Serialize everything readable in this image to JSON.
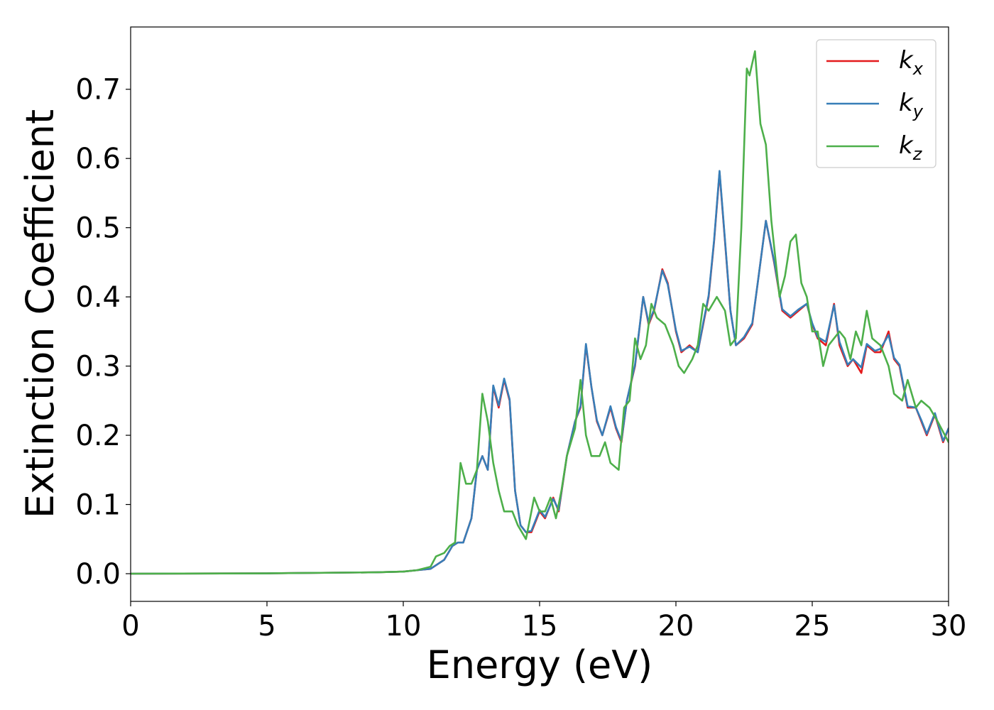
{
  "chart_data": {
    "type": "line",
    "title": "",
    "xlabel": "Energy (eV)",
    "ylabel": "Extinction Coefficient",
    "xlim": [
      0,
      30
    ],
    "ylim": [
      -0.04,
      0.79
    ],
    "xticks": [
      0,
      5,
      10,
      15,
      20,
      25,
      30
    ],
    "xtick_labels": [
      "0",
      "5",
      "10",
      "15",
      "20",
      "25",
      "30"
    ],
    "yticks": [
      0.0,
      0.1,
      0.2,
      0.3,
      0.4,
      0.5,
      0.6,
      0.7
    ],
    "ytick_labels": [
      "0.0",
      "0.1",
      "0.2",
      "0.3",
      "0.4",
      "0.5",
      "0.6",
      "0.7"
    ],
    "grid": false,
    "legend_position": "top-right",
    "series": [
      {
        "name": "kx",
        "label_main": "k",
        "label_sub": "x",
        "color": "#e41a1c",
        "x": [
          0,
          5,
          9,
          10,
          10.5,
          11,
          11.5,
          11.8,
          12,
          12.2,
          12.5,
          12.7,
          12.9,
          13.0,
          13.1,
          13.3,
          13.5,
          13.7,
          13.9,
          14.1,
          14.3,
          14.5,
          14.7,
          15.0,
          15.2,
          15.5,
          15.7,
          16.0,
          16.3,
          16.5,
          16.7,
          16.9,
          17.1,
          17.3,
          17.6,
          17.8,
          18.0,
          18.2,
          18.5,
          18.8,
          19.0,
          19.2,
          19.5,
          19.7,
          20.0,
          20.2,
          20.5,
          20.8,
          21.0,
          21.2,
          21.4,
          21.6,
          21.8,
          22.0,
          22.2,
          22.5,
          22.8,
          23.0,
          23.3,
          23.6,
          23.9,
          24.2,
          24.5,
          24.8,
          25.0,
          25.2,
          25.5,
          25.8,
          26.0,
          26.3,
          26.5,
          26.8,
          27.0,
          27.3,
          27.5,
          27.8,
          28.0,
          28.2,
          28.5,
          28.8,
          29.0,
          29.2,
          29.5,
          29.8,
          30.0
        ],
        "y": [
          0.0,
          0.0005,
          0.002,
          0.003,
          0.005,
          0.007,
          0.02,
          0.04,
          0.045,
          0.045,
          0.08,
          0.15,
          0.17,
          0.16,
          0.15,
          0.27,
          0.24,
          0.28,
          0.25,
          0.12,
          0.07,
          0.06,
          0.06,
          0.09,
          0.08,
          0.11,
          0.09,
          0.17,
          0.22,
          0.24,
          0.33,
          0.27,
          0.22,
          0.2,
          0.24,
          0.21,
          0.19,
          0.25,
          0.3,
          0.4,
          0.36,
          0.38,
          0.44,
          0.42,
          0.35,
          0.32,
          0.33,
          0.32,
          0.36,
          0.4,
          0.48,
          0.58,
          0.48,
          0.38,
          0.33,
          0.34,
          0.36,
          0.42,
          0.51,
          0.45,
          0.38,
          0.37,
          0.38,
          0.39,
          0.36,
          0.34,
          0.33,
          0.39,
          0.33,
          0.3,
          0.31,
          0.29,
          0.33,
          0.32,
          0.32,
          0.35,
          0.31,
          0.3,
          0.24,
          0.24,
          0.22,
          0.2,
          0.23,
          0.19,
          0.21
        ]
      },
      {
        "name": "ky",
        "label_main": "k",
        "label_sub": "y",
        "color": "#377eb8",
        "x": [
          0,
          5,
          9,
          10,
          10.5,
          11,
          11.5,
          11.8,
          12,
          12.2,
          12.5,
          12.7,
          12.9,
          13.0,
          13.1,
          13.3,
          13.5,
          13.7,
          13.9,
          14.1,
          14.3,
          14.5,
          14.7,
          15.0,
          15.2,
          15.5,
          15.7,
          16.0,
          16.3,
          16.5,
          16.7,
          16.9,
          17.1,
          17.3,
          17.6,
          17.8,
          18.0,
          18.2,
          18.5,
          18.8,
          19.0,
          19.2,
          19.5,
          19.7,
          20.0,
          20.2,
          20.5,
          20.8,
          21.0,
          21.2,
          21.4,
          21.6,
          21.8,
          22.0,
          22.2,
          22.5,
          22.8,
          23.0,
          23.3,
          23.6,
          23.9,
          24.2,
          24.5,
          24.8,
          25.0,
          25.2,
          25.5,
          25.8,
          26.0,
          26.3,
          26.5,
          26.8,
          27.0,
          27.3,
          27.5,
          27.8,
          28.0,
          28.2,
          28.5,
          28.8,
          29.0,
          29.2,
          29.5,
          29.8,
          30.0
        ],
        "y": [
          0.0,
          0.0005,
          0.002,
          0.003,
          0.005,
          0.007,
          0.02,
          0.04,
          0.045,
          0.045,
          0.08,
          0.15,
          0.17,
          0.16,
          0.15,
          0.272,
          0.243,
          0.282,
          0.252,
          0.12,
          0.07,
          0.06,
          0.062,
          0.092,
          0.082,
          0.108,
          0.092,
          0.17,
          0.22,
          0.242,
          0.332,
          0.27,
          0.222,
          0.2,
          0.242,
          0.212,
          0.192,
          0.25,
          0.302,
          0.4,
          0.362,
          0.382,
          0.438,
          0.418,
          0.352,
          0.322,
          0.328,
          0.32,
          0.362,
          0.402,
          0.482,
          0.582,
          0.482,
          0.38,
          0.33,
          0.342,
          0.362,
          0.42,
          0.51,
          0.452,
          0.382,
          0.372,
          0.382,
          0.39,
          0.362,
          0.342,
          0.335,
          0.388,
          0.335,
          0.302,
          0.31,
          0.298,
          0.332,
          0.322,
          0.325,
          0.345,
          0.312,
          0.302,
          0.242,
          0.24,
          0.222,
          0.202,
          0.232,
          0.192,
          0.21
        ]
      },
      {
        "name": "kz",
        "label_main": "k",
        "label_sub": "z",
        "color": "#4daf4a",
        "x": [
          0,
          5,
          9,
          10,
          10.5,
          11,
          11.2,
          11.5,
          11.7,
          11.9,
          12.1,
          12.3,
          12.5,
          12.7,
          12.9,
          13.1,
          13.3,
          13.5,
          13.7,
          14.0,
          14.2,
          14.5,
          14.8,
          15.0,
          15.2,
          15.4,
          15.6,
          15.8,
          16.0,
          16.3,
          16.5,
          16.7,
          16.9,
          17.2,
          17.4,
          17.6,
          17.9,
          18.1,
          18.3,
          18.5,
          18.7,
          18.9,
          19.1,
          19.3,
          19.6,
          19.9,
          20.1,
          20.3,
          20.6,
          20.8,
          21.0,
          21.2,
          21.5,
          21.8,
          22.0,
          22.2,
          22.4,
          22.6,
          22.7,
          22.9,
          23.1,
          23.3,
          23.5,
          23.8,
          24.0,
          24.2,
          24.4,
          24.6,
          24.8,
          25.0,
          25.2,
          25.4,
          25.6,
          25.8,
          26.0,
          26.2,
          26.4,
          26.6,
          26.8,
          27.0,
          27.2,
          27.5,
          27.8,
          28.0,
          28.3,
          28.5,
          28.8,
          29.0,
          29.3,
          29.6,
          30.0
        ],
        "y": [
          0.0,
          0.0005,
          0.002,
          0.003,
          0.005,
          0.01,
          0.025,
          0.03,
          0.04,
          0.045,
          0.16,
          0.13,
          0.13,
          0.15,
          0.26,
          0.22,
          0.16,
          0.12,
          0.09,
          0.09,
          0.07,
          0.05,
          0.11,
          0.09,
          0.09,
          0.11,
          0.08,
          0.12,
          0.17,
          0.21,
          0.28,
          0.2,
          0.17,
          0.17,
          0.19,
          0.16,
          0.15,
          0.24,
          0.25,
          0.34,
          0.31,
          0.33,
          0.39,
          0.37,
          0.36,
          0.33,
          0.3,
          0.29,
          0.31,
          0.33,
          0.39,
          0.38,
          0.4,
          0.38,
          0.33,
          0.34,
          0.5,
          0.73,
          0.72,
          0.755,
          0.65,
          0.62,
          0.51,
          0.4,
          0.43,
          0.48,
          0.49,
          0.42,
          0.4,
          0.35,
          0.35,
          0.3,
          0.33,
          0.34,
          0.35,
          0.34,
          0.31,
          0.35,
          0.33,
          0.38,
          0.34,
          0.33,
          0.3,
          0.26,
          0.25,
          0.28,
          0.24,
          0.25,
          0.24,
          0.22,
          0.19
        ]
      }
    ]
  }
}
